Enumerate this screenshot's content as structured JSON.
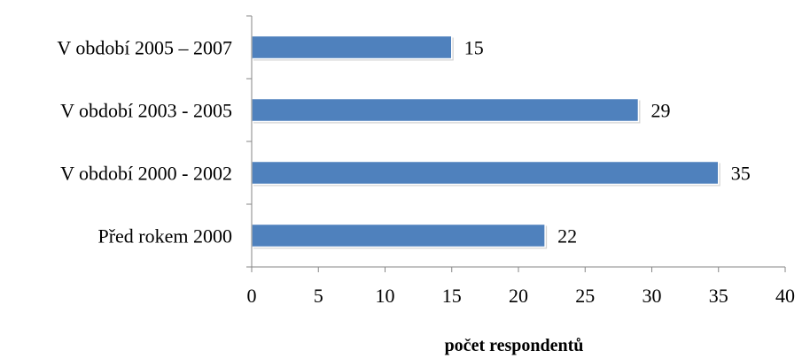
{
  "chart_data": {
    "type": "bar",
    "orientation": "horizontal",
    "categories": [
      "V období 2005 – 2007",
      "V období 2003 - 2005",
      "V období 2000 - 2002",
      "Před rokem 2000"
    ],
    "values": [
      15,
      29,
      35,
      22
    ],
    "data_labels": [
      "15",
      "29",
      "35",
      "22"
    ],
    "xlabel": "počet respondentů",
    "ylabel": "",
    "xlim": [
      0,
      40
    ],
    "xticks": [
      0,
      5,
      10,
      15,
      20,
      25,
      30,
      35,
      40
    ],
    "xtick_labels": [
      "0",
      "5",
      "10",
      "15",
      "20",
      "25",
      "30",
      "35",
      "40"
    ],
    "grid": false,
    "legend": "none",
    "colors": {
      "bar": "#4f81bd",
      "bar_edge": "#3a6aa5",
      "axis": "#868686"
    }
  }
}
